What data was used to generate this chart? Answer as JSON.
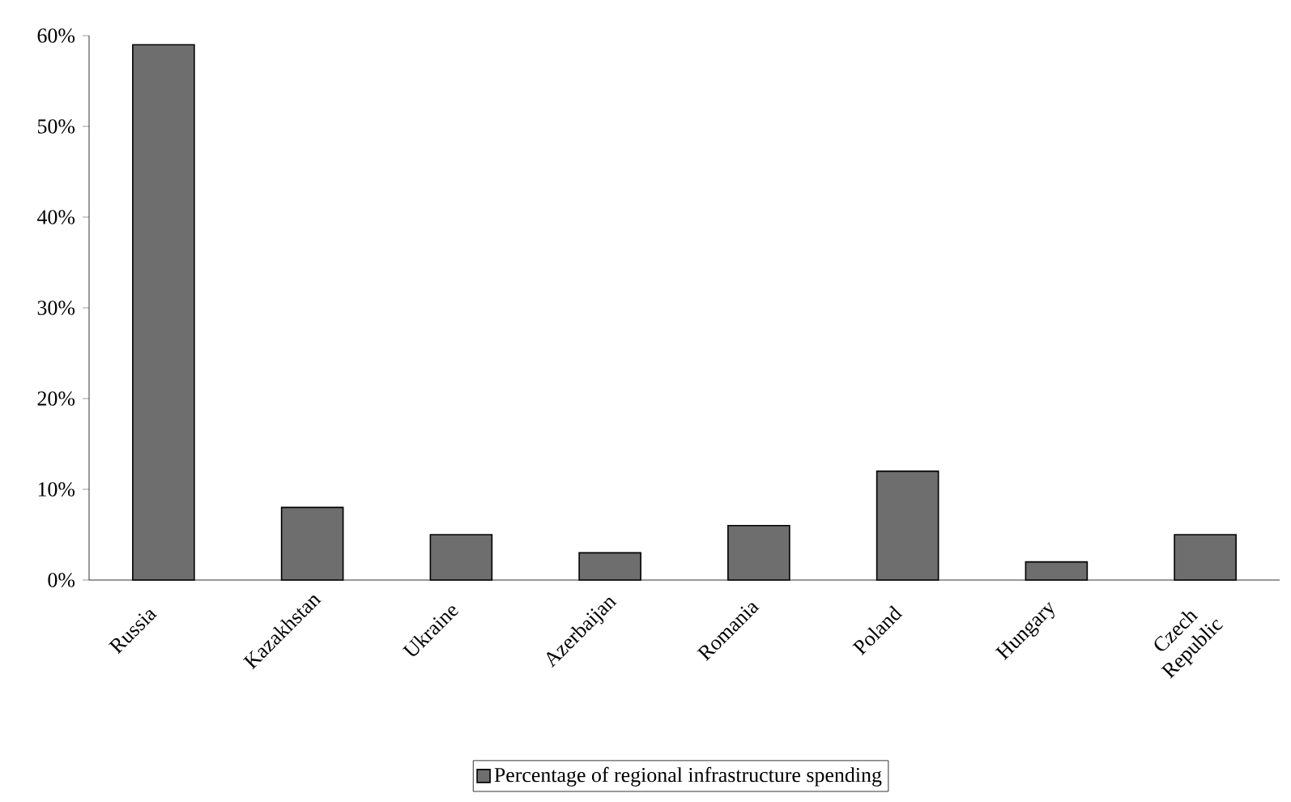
{
  "chart_data": {
    "type": "bar",
    "categories": [
      "Russia",
      "Kazakhstan",
      "Ukraine",
      "Azerbaijan",
      "Romania",
      "Poland",
      "Hungary",
      "Czech Republic"
    ],
    "series": [
      {
        "name": "Percentage of regional infrastructure spending",
        "color": "#6e6e6e",
        "values": [
          59,
          8,
          5,
          3,
          6,
          12,
          2,
          5
        ]
      }
    ],
    "ylim": [
      0,
      60
    ],
    "yticks": [
      {
        "value": 0,
        "label": "0%"
      },
      {
        "value": 10,
        "label": "10%"
      },
      {
        "value": 20,
        "label": "20%"
      },
      {
        "value": 30,
        "label": "30%"
      },
      {
        "value": 40,
        "label": "40%"
      },
      {
        "value": 50,
        "label": "50%"
      },
      {
        "value": 60,
        "label": "60%"
      }
    ],
    "legend": "bottom"
  }
}
